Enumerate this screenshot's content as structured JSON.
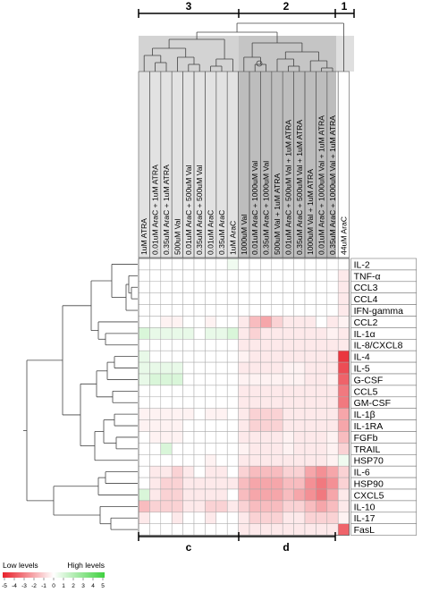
{
  "cluster_labels": {
    "top": [
      "3",
      "2",
      "1"
    ],
    "bottom": [
      "c",
      "d"
    ]
  },
  "columns": [
    "1uM ATRA",
    "0.01uM AraC + 1uM ATRA",
    "0.35uM AraC + 1uM ATRA",
    "500uM Val",
    "0.01uM AraC + 500uM Val",
    "0.35uM AraC + 500uM Val",
    "0.01uM AraC",
    "0.35uM AraC",
    "1uM AraC",
    "1000uM Val",
    "0.01uM AraC + 1000uM Val",
    "0.35uM AraC + 1000uM Val",
    "500uM Val + 1uM ATRA",
    "0.01uM AraC + 500uM Val + 1uM ATRA",
    "0.35uM AraC + 500uM Val + 1uM ATRA",
    "1000uM Val + 1uM ATRA",
    "0.01uM AraC + 1000uM Val + 1uM ATRA",
    "0.35uM AraC + 1000uM Val + 1uM ATRA",
    "44uM AraC"
  ],
  "rows": [
    "IL-2",
    "TNF-α",
    "CCL3",
    "CCL4",
    "IFN-gamma",
    "CCL2",
    "IL-1α",
    "IL-8/CXCL8",
    "IL-4",
    "IL-5",
    "G-CSF",
    "CCL5",
    "GM-CSF",
    "IL-1β",
    "IL-1RA",
    "FGFb",
    "TRAIL",
    "HSP70",
    "IL-6",
    "HSP90",
    "CXCL5",
    "IL-10",
    "IL-17",
    "FasL"
  ],
  "heatmap_values": [
    [
      0,
      0,
      0,
      0,
      0,
      0,
      0,
      0,
      0.4,
      0,
      0,
      0,
      0,
      0,
      0,
      0,
      0,
      0,
      0
    ],
    [
      0,
      0,
      0,
      0,
      0,
      0,
      0,
      0,
      0,
      0,
      0,
      0,
      0,
      0,
      0,
      0,
      0,
      0,
      -0.5
    ],
    [
      0,
      0,
      0,
      0,
      0,
      0,
      0,
      0,
      0,
      0,
      0,
      0,
      0,
      0,
      0,
      0,
      0,
      0,
      -0.5
    ],
    [
      0,
      0,
      0,
      0,
      0,
      0,
      0,
      0,
      0,
      0,
      0,
      0,
      0,
      0,
      0,
      0,
      0,
      0,
      -0.5
    ],
    [
      0,
      0,
      0,
      0,
      0,
      0,
      0,
      0,
      0,
      0,
      0,
      0,
      0,
      0,
      0,
      0,
      0,
      0,
      -0.5
    ],
    [
      0,
      0,
      -0.3,
      -0.3,
      0,
      0,
      -0.3,
      0,
      0,
      -0.5,
      -1.5,
      -2,
      -1,
      -0.5,
      -0.5,
      -0.5,
      0,
      -0.5,
      -0.3
    ],
    [
      1,
      0.6,
      0.6,
      0.6,
      0.6,
      0,
      0.6,
      0.6,
      1,
      -0.5,
      -1,
      -0.5,
      -0.5,
      -0.5,
      -0.5,
      -0.5,
      -0.5,
      -0.3,
      -0.5
    ],
    [
      0,
      0,
      0,
      0,
      0,
      0,
      0,
      0,
      0,
      -0.5,
      -0.5,
      -0.5,
      -0.5,
      -0.5,
      -0.5,
      -0.5,
      -0.5,
      -0.5,
      -0.5
    ],
    [
      0.6,
      0,
      0,
      0,
      0,
      0,
      0,
      0,
      0,
      -0.3,
      -0.5,
      -0.5,
      -0.5,
      -0.5,
      -0.5,
      -0.5,
      -0.5,
      -0.5,
      -4.5
    ],
    [
      0.6,
      0.6,
      0.6,
      0.6,
      0,
      0,
      0,
      0,
      0,
      -0.5,
      -0.5,
      -0.5,
      -0.5,
      -0.3,
      -0.3,
      -0.5,
      -0.5,
      -0.5,
      -4
    ],
    [
      0.6,
      1,
      1,
      1,
      0,
      0,
      0,
      0,
      0,
      -0.3,
      -0.3,
      -0.3,
      -0.3,
      -0.3,
      -0.3,
      -0.5,
      -0.5,
      -0.3,
      -3.5
    ],
    [
      0,
      0,
      0,
      0,
      0,
      0,
      0,
      0,
      0,
      -0.5,
      -0.5,
      -0.5,
      -0.5,
      -0.5,
      -0.5,
      -0.5,
      -0.5,
      -0.5,
      -3
    ],
    [
      0,
      0,
      0,
      0,
      0,
      0,
      0,
      0,
      0,
      -0.5,
      -0.5,
      -0.5,
      -0.5,
      -0.5,
      -0.5,
      -0.5,
      -0.5,
      -0.5,
      -3
    ],
    [
      -0.3,
      -0.3,
      -0.3,
      -0.3,
      -0.3,
      0,
      -0.3,
      -0.3,
      0,
      -0.5,
      -1,
      -1,
      -1,
      -0.5,
      -0.5,
      -0.5,
      -0.5,
      -0.5,
      -2
    ],
    [
      -0.3,
      -0.3,
      -0.3,
      -0.3,
      0,
      0,
      0,
      0,
      0,
      -0.5,
      -1,
      -1,
      -1,
      -0.5,
      -0.5,
      -0.5,
      -0.5,
      -0.5,
      -2
    ],
    [
      0,
      -0.3,
      -0.3,
      -0.3,
      0,
      0,
      0,
      0,
      0,
      -0.5,
      -0.5,
      -0.5,
      -0.5,
      -0.3,
      -0.5,
      -0.5,
      -0.5,
      -0.3,
      -1.5
    ],
    [
      0,
      0,
      1,
      0,
      0,
      0,
      0,
      0,
      0,
      -0.3,
      -0.5,
      -0.5,
      -0.5,
      -0.3,
      -0.5,
      -0.5,
      -0.5,
      -0.3,
      -1
    ],
    [
      0,
      0,
      0,
      0,
      0,
      0,
      -0.3,
      0,
      0,
      -0.5,
      -0.5,
      -0.5,
      -0.5,
      -0.5,
      -0.5,
      -0.5,
      -0.5,
      -0.3,
      0.4
    ],
    [
      0,
      -0.5,
      -0.5,
      -1,
      -0.5,
      0,
      -0.5,
      -0.5,
      0,
      -1,
      -1.5,
      -1.5,
      -1.5,
      -1,
      -1,
      -2,
      -2.5,
      -2,
      -1
    ],
    [
      0,
      -0.5,
      -1,
      -1,
      -0.5,
      -0.5,
      -0.5,
      -0.5,
      -0.5,
      -1.5,
      -2,
      -2,
      -2,
      -1.5,
      -1.5,
      -2.5,
      -3,
      -2.5,
      -1
    ],
    [
      1,
      -0.5,
      -1,
      -1,
      -0.5,
      -0.5,
      -0.5,
      -0.5,
      0,
      -1.5,
      -2,
      -2,
      -2,
      -1.5,
      -2,
      -2.5,
      -3,
      -2,
      -0.5
    ],
    [
      -1.5,
      -1,
      -1,
      -1,
      -0.5,
      -0.5,
      -1,
      -1,
      -0.5,
      -1,
      -1.5,
      -1.5,
      -1.5,
      -1,
      -1,
      -1.5,
      -2,
      -1.5,
      -0.5
    ],
    [
      -0.5,
      0,
      0,
      -0.5,
      0,
      0,
      -0.5,
      0,
      0,
      -0.5,
      -1,
      -1,
      -1,
      -0.5,
      -0.5,
      -1,
      -1,
      -1,
      -0.3
    ],
    [
      0,
      0,
      0,
      0,
      0,
      0,
      0,
      0,
      0,
      -0.5,
      -0.5,
      -0.5,
      -0.5,
      -0.5,
      -0.5,
      -0.5,
      -0.5,
      -0.5,
      -3.5
    ]
  ],
  "legend": {
    "low_label": "Low levels",
    "high_label": "High levels",
    "ticks": [
      "-5",
      "-4",
      "-3",
      "-2",
      "-1",
      "0",
      "1",
      "2",
      "3",
      "4",
      "5"
    ],
    "low_color": "#e8202a",
    "mid_color": "#ffffff",
    "high_color": "#3fd13f"
  }
}
